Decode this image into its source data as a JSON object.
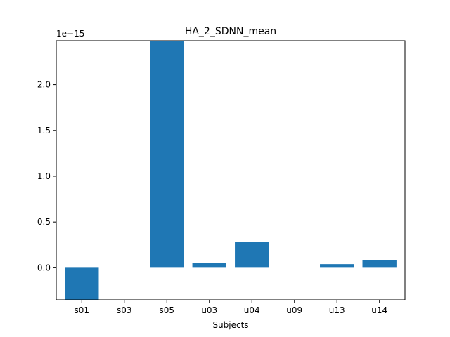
{
  "chart_data": {
    "type": "bar",
    "title": "HA_2_SDNN_mean",
    "xlabel": "Subjects",
    "ylabel": "",
    "scale_label": "1e−15",
    "categories": [
      "s01",
      "s03",
      "s05",
      "u03",
      "u04",
      "u09",
      "u13",
      "u14"
    ],
    "values": [
      -0.35,
      0.0,
      2.48,
      0.05,
      0.28,
      0.0,
      0.04,
      0.08
    ],
    "ylim": [
      -0.35,
      2.48
    ],
    "yticks": [
      0.0,
      0.5,
      1.0,
      1.5,
      2.0
    ],
    "ytick_labels": [
      "0.0",
      "0.5",
      "1.0",
      "1.5",
      "2.0"
    ],
    "grid": false,
    "colors": {
      "bar": "#1f77b4",
      "axis": "#000000"
    }
  }
}
